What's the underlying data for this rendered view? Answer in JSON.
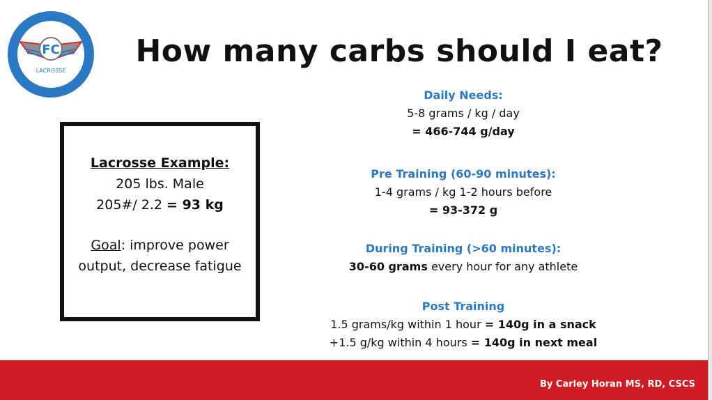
{
  "logo": {
    "text": "LACROSSE",
    "ring_color": "#2b79c2"
  },
  "title": "How many carbs should I eat?",
  "example": {
    "heading": "Lacrosse Example:",
    "line1": "205 lbs. Male",
    "line2_prefix": "205#/ 2.2 ",
    "line2_bold": "= 93 kg",
    "goal_label": "Goal",
    "goal_text": ": improve power output, decrease fatigue"
  },
  "sections": [
    {
      "heading": "Daily Needs:",
      "line1": "5-8 grams / kg / day",
      "line2_bold": "= 466-744 g/day"
    },
    {
      "heading": "Pre Training (60-90 minutes):",
      "line1": "1-4 grams / kg 1-2 hours before",
      "line2_bold": "= 93-372 g"
    },
    {
      "heading": "During Training (>60 minutes):",
      "line1_bold": "30-60 grams",
      "line1_rest": " every hour for any athlete"
    },
    {
      "heading": "Post Training",
      "line1": "1.5 grams/kg within 1 hour ",
      "line1_bold": "= 140g in a snack",
      "line2": "+1.5 g/kg within 4 hours  ",
      "line2_bold": "= 140g in next meal"
    }
  ],
  "footer": {
    "byline": "By Carley Horan MS, RD, CSCS",
    "color": "#cf1c24"
  }
}
